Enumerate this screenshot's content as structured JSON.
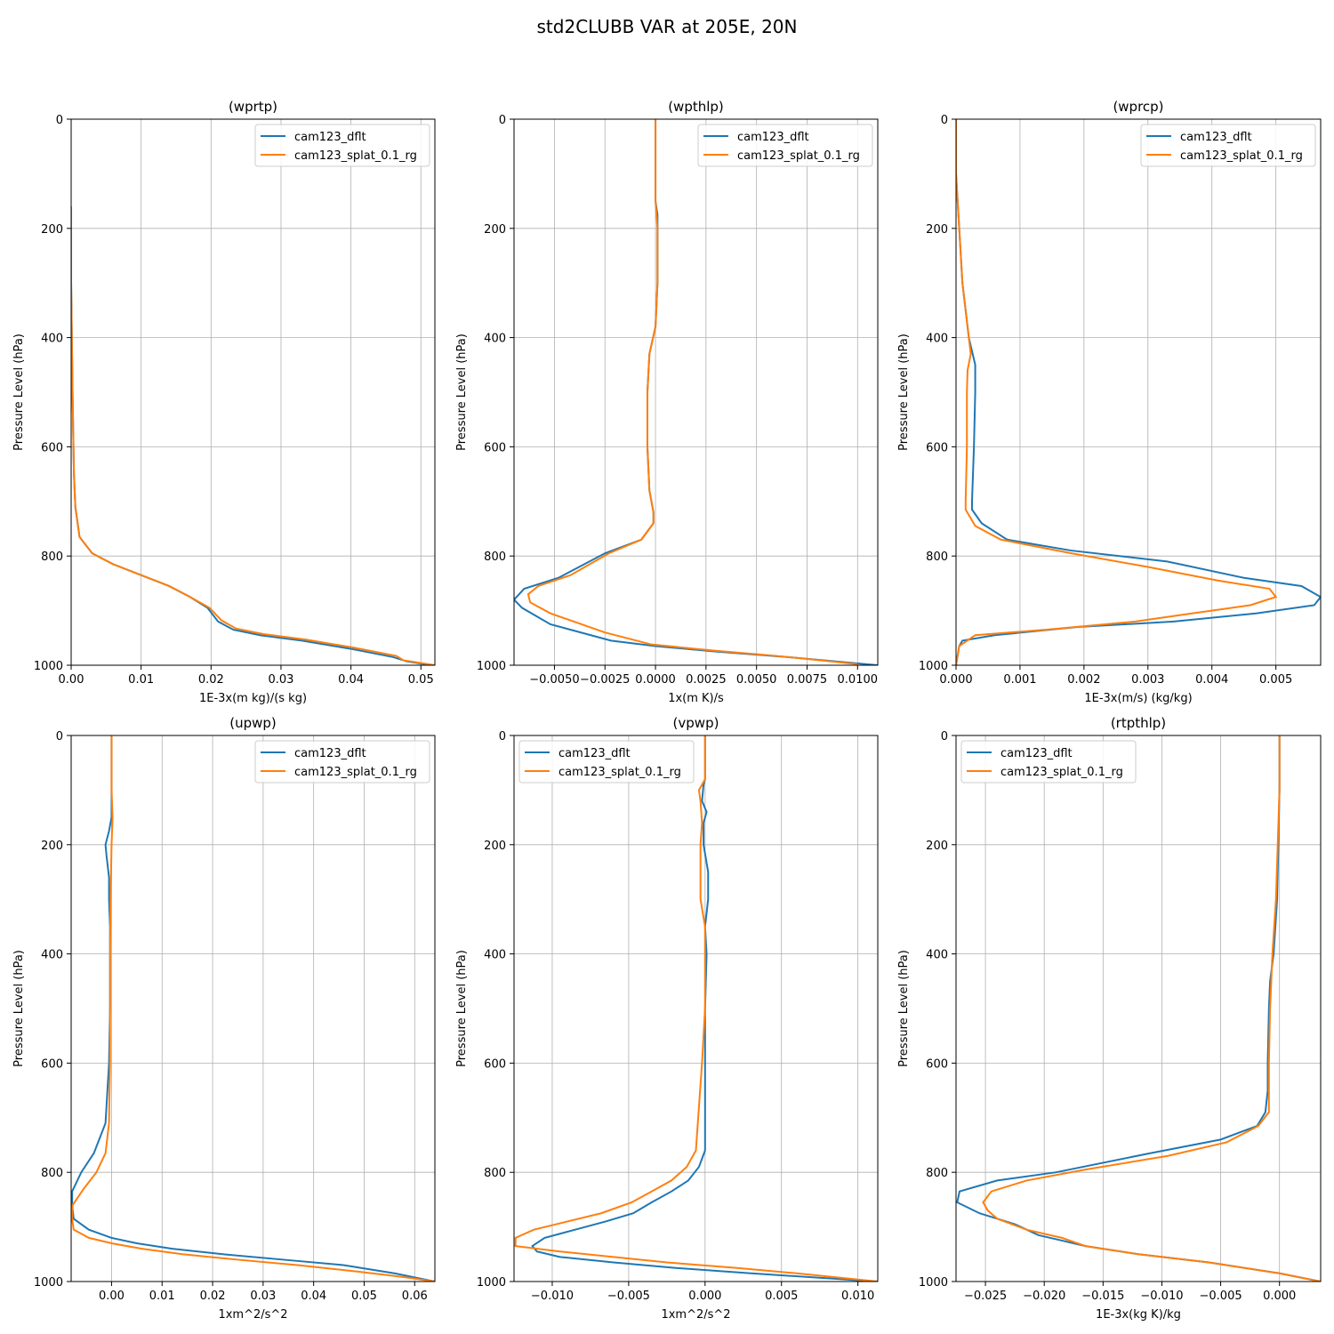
{
  "figure": {
    "suptitle": "std2CLUBB VAR at 205E, 20N"
  },
  "chart_data": [
    {
      "type": "line",
      "title": "(wprtp)",
      "xlabel": "1E-3x(m kg)/(s kg)",
      "ylabel": "Pressure Level (hPa)",
      "xlim": [
        0,
        0.052
      ],
      "ylim": [
        1000,
        0
      ],
      "xticks": [
        0,
        0.01,
        0.02,
        0.03,
        0.04,
        0.05
      ],
      "xtick_labels": [
        "0.00",
        "0.01",
        "0.02",
        "0.03",
        "0.04",
        "0.05"
      ],
      "yticks": [
        0,
        200,
        400,
        600,
        800,
        1000
      ],
      "ytick_labels": [
        "0",
        "200",
        "400",
        "600",
        "800",
        "1000"
      ],
      "grid": true,
      "legend": "upper right",
      "series": [
        {
          "name": "cam123_dflt",
          "color": "#1f77b4",
          "x": [
            0,
            0,
            0.0002,
            0.0004,
            0.0006,
            0.0012,
            0.003,
            0.006,
            0.01,
            0.014,
            0.017,
            0.0195,
            0.021,
            0.0232,
            0.027,
            0.033,
            0.04,
            0.046,
            0.048,
            0.0515
          ],
          "y": [
            160,
            300,
            500,
            650,
            710,
            765,
            795,
            815,
            835,
            855,
            875,
            895,
            920,
            935,
            945,
            955,
            970,
            985,
            993,
            1000
          ]
        },
        {
          "name": "cam123_splat_0.1_rg",
          "color": "#ff7f0e",
          "x": [
            0,
            0,
            0.0002,
            0.0004,
            0.0006,
            0.0012,
            0.003,
            0.006,
            0.01,
            0.014,
            0.017,
            0.0198,
            0.0215,
            0.0236,
            0.0275,
            0.0335,
            0.0405,
            0.0465,
            0.0475,
            0.052
          ],
          "y": [
            160,
            300,
            500,
            650,
            710,
            765,
            795,
            815,
            835,
            855,
            875,
            895,
            918,
            933,
            943,
            953,
            968,
            983,
            991,
            1000
          ]
        }
      ]
    },
    {
      "type": "line",
      "title": "(wpthlp)",
      "xlabel": "1x(m K)/s",
      "ylabel": "Pressure Level (hPa)",
      "xlim": [
        -0.007,
        0.011
      ],
      "ylim": [
        1000,
        0
      ],
      "xticks": [
        -0.005,
        -0.0025,
        0,
        0.0025,
        0.005,
        0.0075,
        0.01
      ],
      "xtick_labels": [
        "−0.0050",
        "−0.0025",
        "0.0000",
        "0.0025",
        "0.0050",
        "0.0075",
        "0.0100"
      ],
      "yticks": [
        0,
        200,
        400,
        600,
        800,
        1000
      ],
      "ytick_labels": [
        "0",
        "200",
        "400",
        "600",
        "800",
        "1000"
      ],
      "grid": true,
      "legend": "upper right",
      "series": [
        {
          "name": "cam123_dflt",
          "color": "#1f77b4",
          "x": [
            0,
            0,
            0.0001,
            0.0001,
            0.0001,
            0,
            -0.0003,
            -0.0004,
            -0.0004,
            -0.0003,
            -0.0001,
            -0.0001,
            -0.0007,
            -0.0025,
            -0.0048,
            -0.0065,
            -0.007,
            -0.0066,
            -0.0052,
            -0.0022,
            0.0,
            0.003,
            0.0065,
            0.011
          ],
          "y": [
            0,
            150,
            175,
            200,
            300,
            380,
            430,
            500,
            600,
            680,
            720,
            740,
            770,
            795,
            840,
            860,
            880,
            895,
            925,
            955,
            965,
            975,
            985,
            1000
          ]
        },
        {
          "name": "cam123_splat_0.1_rg",
          "color": "#ff7f0e",
          "x": [
            0,
            0,
            0.0001,
            0.0001,
            0,
            -0.0003,
            -0.0004,
            -0.0004,
            -0.0003,
            -0.0001,
            -0.0001,
            -0.0007,
            -0.0023,
            -0.0042,
            -0.0058,
            -0.0063,
            -0.0062,
            -0.0052,
            -0.0025,
            -0.0002,
            0.0028,
            0.006,
            0.01
          ],
          "y": [
            0,
            150,
            200,
            300,
            380,
            430,
            500,
            600,
            680,
            720,
            740,
            770,
            795,
            835,
            855,
            870,
            885,
            905,
            940,
            962,
            973,
            983,
            998
          ]
        }
      ]
    },
    {
      "type": "line",
      "title": "(wprcp)",
      "xlabel": "1E-3x(m/s) (kg/kg)",
      "ylabel": "Pressure Level (hPa)",
      "xlim": [
        0,
        0.0057
      ],
      "ylim": [
        1000,
        0
      ],
      "xticks": [
        0,
        0.001,
        0.002,
        0.003,
        0.004,
        0.005
      ],
      "xtick_labels": [
        "0.000",
        "0.001",
        "0.002",
        "0.003",
        "0.004",
        "0.005"
      ],
      "yticks": [
        0,
        200,
        400,
        600,
        800,
        1000
      ],
      "ytick_labels": [
        "0",
        "200",
        "400",
        "600",
        "800",
        "1000"
      ],
      "grid": true,
      "legend": "upper right",
      "series": [
        {
          "name": "cam123_dflt",
          "color": "#1f77b4",
          "x": [
            0,
            0,
            5e-05,
            0.0001,
            0.0002,
            0.0003,
            0.0003,
            0.00028,
            0.00025,
            0.00025,
            0.0004,
            0.0008,
            0.0018,
            0.0033,
            0.0045,
            0.0054,
            0.0057,
            0.0056,
            0.0047,
            0.0034,
            0.0019,
            0.0006,
            0.0001,
            5e-05,
            0
          ],
          "y": [
            0,
            100,
            200,
            300,
            400,
            450,
            500,
            600,
            700,
            715,
            740,
            770,
            790,
            810,
            840,
            855,
            875,
            890,
            905,
            920,
            930,
            945,
            955,
            965,
            1000
          ]
        },
        {
          "name": "cam123_splat_0.1_rg",
          "color": "#ff7f0e",
          "x": [
            0,
            0,
            5e-05,
            0.0001,
            0.0002,
            0.00023,
            0.00018,
            0.00017,
            0.00017,
            0.00015,
            0.00015,
            0.0003,
            0.0007,
            0.0018,
            0.003,
            0.0041,
            0.0049,
            0.005,
            0.0046,
            0.0037,
            0.0028,
            0.0014,
            0.0003,
            5e-05,
            0
          ],
          "y": [
            0,
            100,
            200,
            300,
            400,
            430,
            460,
            500,
            600,
            700,
            715,
            745,
            770,
            795,
            820,
            845,
            860,
            875,
            890,
            905,
            920,
            935,
            945,
            965,
            1000
          ]
        }
      ]
    },
    {
      "type": "line",
      "title": "(upwp)",
      "xlabel": "1xm^2/s^2",
      "ylabel": "Pressure Level (hPa)",
      "xlim": [
        -0.008,
        0.064
      ],
      "ylim": [
        1000,
        0
      ],
      "xticks": [
        0,
        0.01,
        0.02,
        0.03,
        0.04,
        0.05,
        0.06
      ],
      "xtick_labels": [
        "0.00",
        "0.01",
        "0.02",
        "0.03",
        "0.04",
        "0.05",
        "0.06"
      ],
      "yticks": [
        0,
        200,
        400,
        600,
        800,
        1000
      ],
      "ytick_labels": [
        "0",
        "200",
        "400",
        "600",
        "800",
        "1000"
      ],
      "grid": true,
      "legend": "upper right",
      "series": [
        {
          "name": "cam123_dflt",
          "color": "#1f77b4",
          "x": [
            0,
            0,
            0,
            -0.0005,
            -0.0012,
            -0.001,
            -0.0005,
            -0.0005,
            -0.0003,
            -0.0003,
            -0.0003,
            -0.0005,
            -0.0012,
            -0.0035,
            -0.006,
            -0.0078,
            -0.0078,
            -0.0075,
            -0.0045,
            0,
            0.005,
            0.012,
            0.022,
            0.034,
            0.046,
            0.056,
            0.064
          ],
          "y": [
            0,
            100,
            150,
            175,
            200,
            220,
            260,
            300,
            350,
            400,
            500,
            600,
            710,
            765,
            800,
            835,
            860,
            885,
            905,
            920,
            930,
            940,
            950,
            960,
            970,
            985,
            1000
          ]
        },
        {
          "name": "cam123_splat_0.1_rg",
          "color": "#ff7f0e",
          "x": [
            0,
            0,
            0.0002,
            0,
            -0.0002,
            -0.0003,
            -0.0003,
            -0.0003,
            -0.0005,
            -0.0012,
            -0.003,
            -0.0055,
            -0.0077,
            -0.0078,
            -0.0075,
            -0.0045,
            0,
            0.006,
            0.014,
            0.025,
            0.037,
            0.049,
            0.058,
            0.064
          ],
          "y": [
            0,
            100,
            150,
            200,
            300,
            400,
            500,
            600,
            710,
            765,
            800,
            830,
            860,
            885,
            905,
            920,
            930,
            940,
            950,
            960,
            970,
            982,
            992,
            1000
          ]
        }
      ]
    },
    {
      "type": "line",
      "title": "(vpwp)",
      "xlabel": "1xm^2/s^2",
      "ylabel": "Pressure Level (hPa)",
      "xlim": [
        -0.0125,
        0.0113
      ],
      "ylim": [
        1000,
        0
      ],
      "xticks": [
        -0.01,
        -0.005,
        0,
        0.005,
        0.01
      ],
      "xtick_labels": [
        "−0.010",
        "−0.005",
        "0.000",
        "0.005",
        "0.010"
      ],
      "yticks": [
        0,
        200,
        400,
        600,
        800,
        1000
      ],
      "ytick_labels": [
        "0",
        "200",
        "400",
        "600",
        "800",
        "1000"
      ],
      "grid": true,
      "legend": "upper left",
      "series": [
        {
          "name": "cam123_dflt",
          "color": "#1f77b4",
          "x": [
            0,
            0,
            -0.0001,
            -0.0002,
            0.0001,
            -0.0001,
            -0.0001,
            0.0002,
            0.0002,
            0,
            0.0001,
            0,
            0,
            0,
            -0.0004,
            -0.0011,
            -0.0022,
            -0.0035,
            -0.0047,
            -0.0065,
            -0.0085,
            -0.0105,
            -0.0113,
            -0.011,
            -0.0095,
            -0.006,
            -0.002,
            0.003,
            0.0113
          ],
          "y": [
            0,
            80,
            90,
            120,
            140,
            160,
            200,
            250,
            300,
            350,
            400,
            500,
            600,
            760,
            790,
            815,
            835,
            855,
            875,
            890,
            905,
            920,
            935,
            945,
            955,
            965,
            975,
            985,
            1000
          ]
        },
        {
          "name": "cam123_splat_0.1_rg",
          "color": "#ff7f0e",
          "x": [
            0,
            0,
            -0.0002,
            -0.0004,
            -0.0003,
            -0.0002,
            -0.0003,
            -0.0003,
            -0.0003,
            0,
            0,
            0,
            -0.0002,
            -0.0006,
            -0.0012,
            -0.0022,
            -0.0035,
            -0.0048,
            -0.0068,
            -0.009,
            -0.0112,
            -0.0124,
            -0.0124,
            -0.0095,
            -0.006,
            -0.0025,
            0.002,
            0.006,
            0.0113
          ],
          "y": [
            0,
            80,
            90,
            100,
            120,
            160,
            200,
            250,
            300,
            350,
            400,
            500,
            600,
            760,
            790,
            815,
            835,
            855,
            875,
            890,
            905,
            920,
            935,
            945,
            955,
            965,
            975,
            985,
            1000
          ]
        }
      ]
    },
    {
      "type": "line",
      "title": "(rtpthlp)",
      "xlabel": "1E-3x(kg K)/kg",
      "ylabel": "Pressure Level (hPa)",
      "xlim": [
        -0.0275,
        0.0035
      ],
      "ylim": [
        1000,
        0
      ],
      "xticks": [
        -0.025,
        -0.02,
        -0.015,
        -0.01,
        -0.005,
        0
      ],
      "xtick_labels": [
        "−0.025",
        "−0.020",
        "−0.015",
        "−0.010",
        "−0.005",
        "0.000"
      ],
      "yticks": [
        0,
        200,
        400,
        600,
        800,
        1000
      ],
      "ytick_labels": [
        "0",
        "200",
        "400",
        "600",
        "800",
        "1000"
      ],
      "grid": true,
      "legend": "upper left",
      "series": [
        {
          "name": "cam123_dflt",
          "color": "#1f77b4",
          "x": [
            0,
            0,
            -0.0002,
            -0.0005,
            -0.0008,
            -0.0009,
            -0.001,
            -0.001,
            -0.0012,
            -0.0019,
            -0.005,
            -0.011,
            -0.019,
            -0.024,
            -0.0272,
            -0.0274,
            -0.0255,
            -0.0225,
            -0.0205,
            -0.0185,
            -0.0165,
            -0.012,
            -0.006,
            0,
            0.0035
          ],
          "y": [
            0,
            100,
            300,
            400,
            450,
            500,
            600,
            650,
            690,
            715,
            740,
            765,
            800,
            815,
            835,
            855,
            875,
            895,
            915,
            925,
            935,
            950,
            965,
            985,
            1000
          ]
        },
        {
          "name": "cam123_splat_0.1_rg",
          "color": "#ff7f0e",
          "x": [
            0,
            0,
            -0.0003,
            -0.0006,
            -0.0008,
            -0.0009,
            -0.0009,
            -0.0018,
            -0.0045,
            -0.0095,
            -0.0165,
            -0.0215,
            -0.0245,
            -0.0252,
            -0.0248,
            -0.024,
            -0.0215,
            -0.0185,
            -0.0165,
            -0.012,
            -0.006,
            0,
            0.0035
          ],
          "y": [
            0,
            100,
            300,
            400,
            500,
            600,
            690,
            715,
            745,
            770,
            795,
            815,
            835,
            855,
            870,
            885,
            905,
            920,
            935,
            950,
            965,
            985,
            1000
          ]
        }
      ]
    }
  ]
}
